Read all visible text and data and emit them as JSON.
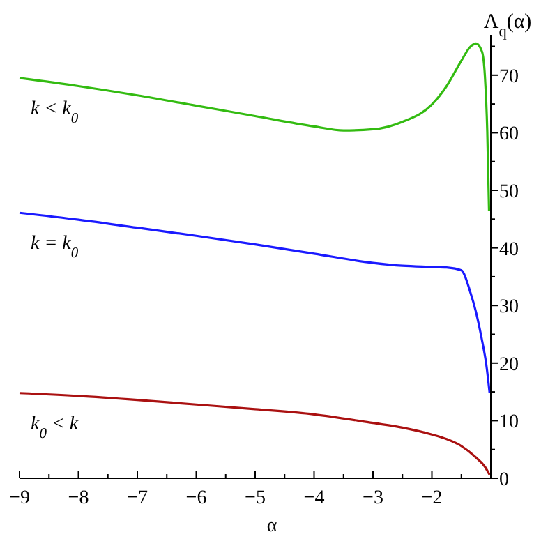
{
  "chart_data": {
    "type": "line",
    "xlabel": "α",
    "ylabel": "Λ$_{q}$(α)",
    "xlim": [
      -9,
      -1
    ],
    "ylim": [
      0,
      77
    ],
    "xticks": [
      -9,
      {
        "value": -8.5,
        "label": null
      },
      -8,
      {
        "value": -7.5,
        "label": null
      },
      -7,
      {
        "value": -6.5,
        "label": null
      },
      -6,
      {
        "value": -5.5,
        "label": null
      },
      -5,
      {
        "value": -4.5,
        "label": null
      },
      -4,
      {
        "value": -3.5,
        "label": null
      },
      -3,
      {
        "value": -2.5,
        "label": null
      },
      -2,
      {
        "value": -1.5,
        "label": null
      },
      {
        "value": -1,
        "label": null
      }
    ],
    "yticks": [
      0,
      {
        "value": 5,
        "label": null
      },
      10,
      {
        "value": 15,
        "label": null
      },
      20,
      {
        "value": 25,
        "label": null
      },
      30,
      {
        "value": 35,
        "label": null
      },
      40,
      {
        "value": 45,
        "label": null
      },
      50,
      {
        "value": 55,
        "label": null
      },
      60,
      {
        "value": 65,
        "label": null
      },
      70,
      {
        "value": 75,
        "label": null
      }
    ],
    "x": [
      -9,
      -8,
      -7,
      -6,
      -5,
      -4,
      -3.5,
      -3,
      -2.5,
      -2,
      -1.75,
      -1.5,
      -1.35,
      -1.25,
      -1.15,
      -1.1,
      -1.06,
      -1.03
    ],
    "series": [
      {
        "name": "k < k$_{0}$",
        "color": "#33bb11",
        "values": [
          69.5,
          68.1,
          66.5,
          64.7,
          62.9,
          61.1,
          60.4,
          60.6,
          61.9,
          64.9,
          68.1,
          72.5,
          74.9,
          75.5,
          74.1,
          69.8,
          60.2,
          46.5
        ]
      },
      {
        "name": "k = k$_{0}$",
        "color": "#1a1aff",
        "x": [
          -9,
          -8,
          -7,
          -6,
          -5,
          -4,
          -3,
          -2.5,
          -2,
          -1.75,
          -1.5,
          -1.35,
          -1.25,
          -1.15,
          -1.08,
          -1.02
        ],
        "values": [
          46.1,
          44.9,
          43.5,
          42.1,
          40.6,
          39.0,
          37.4,
          36.9,
          36.7,
          36.6,
          36.1,
          32.4,
          28.8,
          24.0,
          20.0,
          14.8
        ]
      },
      {
        "name": "k$_{0}$ < k",
        "color": "#aa1111",
        "x": [
          -9,
          -8,
          -7,
          -6,
          -5,
          -4,
          -3,
          -2.5,
          -2,
          -1.75,
          -1.5,
          -1.25,
          -1.1,
          -1.02
        ],
        "values": [
          14.8,
          14.3,
          13.6,
          12.8,
          12.0,
          11.1,
          9.6,
          8.8,
          7.6,
          6.8,
          5.6,
          3.6,
          2.0,
          0.6
        ]
      }
    ]
  }
}
